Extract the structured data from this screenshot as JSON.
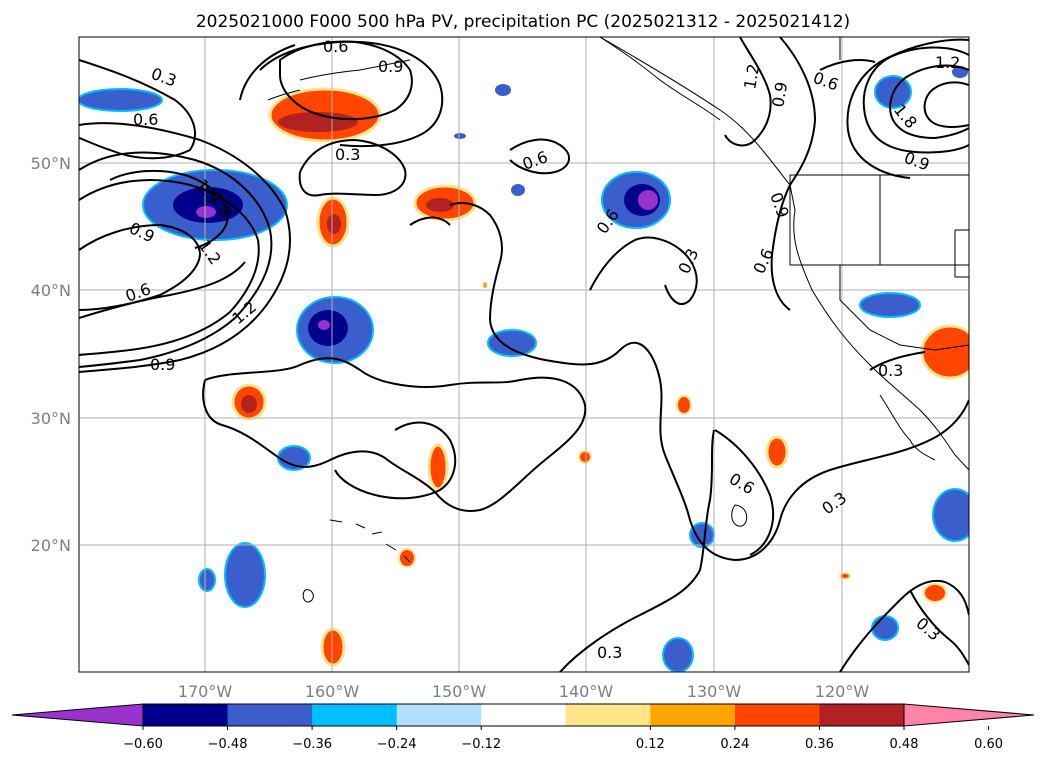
{
  "title": "2025021000 F000 500 hPa PV, precipitation PC (2025021312 - 2025021412)",
  "lon_ticks": [
    "170°W",
    "160°W",
    "150°W",
    "140°W",
    "130°W",
    "120°W"
  ],
  "lat_ticks": [
    "50°N",
    "40°N",
    "30°N",
    "20°N"
  ],
  "contour_labels": [
    "0.3",
    "0.6",
    "0.9",
    "1.2",
    "1.5",
    "1.8"
  ],
  "colorbar": {
    "ticks": [
      "−0.60",
      "−0.48",
      "−0.36",
      "−0.24",
      "−0.12",
      "0.12",
      "0.24",
      "0.36",
      "0.48",
      "0.60"
    ],
    "colors": [
      "#9932cc",
      "#00008b",
      "#3a5fcd",
      "#00bfff",
      "#b0e2ff",
      "#ffffff",
      "#ffe48a",
      "#ffa500",
      "#ff4500",
      "#b22222",
      "#ff83a8"
    ]
  },
  "colors": {
    "negative_light": "#00bfff",
    "negative_mid": "#3a5fcd",
    "negative_dark": "#00008b",
    "negative_min": "#9932cc",
    "positive_light": "#ffe48a",
    "positive_mid": "#ffa500",
    "positive_strong": "#ff4500",
    "positive_max": "#b22222"
  }
}
